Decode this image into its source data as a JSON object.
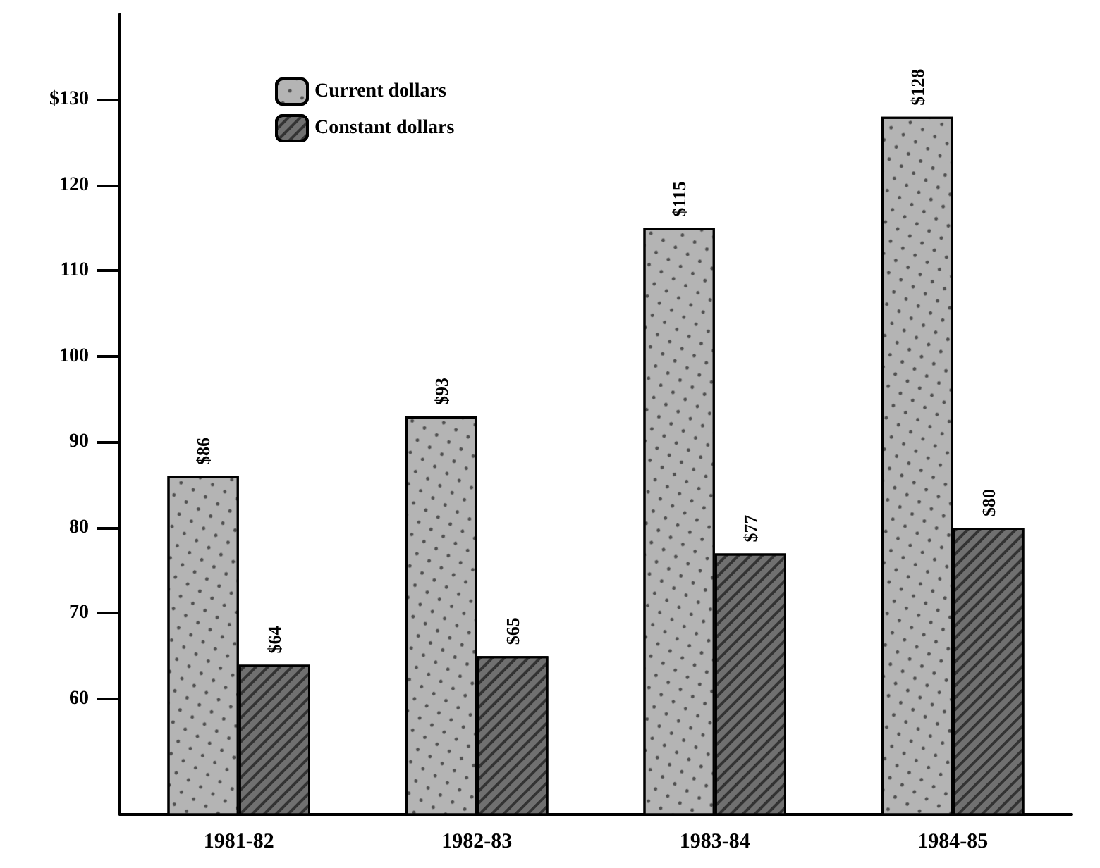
{
  "chart_data": {
    "type": "bar",
    "categories": [
      "1981-82",
      "1982-83",
      "1983-84",
      "1984-85"
    ],
    "series": [
      {
        "name": "Current dollars",
        "color": "#b4b4b4",
        "values": [
          86,
          93,
          115,
          128
        ],
        "value_labels": [
          "$86",
          "$93",
          "$115",
          "$128"
        ]
      },
      {
        "name": "Constant dollars",
        "color": "#707070",
        "values": [
          64,
          65,
          77,
          80
        ],
        "value_labels": [
          "$64",
          "$65",
          "$77",
          "$80"
        ]
      }
    ],
    "ylim": [
      46.5,
      140
    ],
    "yticks": [
      60,
      70,
      80,
      90,
      100,
      110,
      120,
      {
        "value": 130,
        "label": "$130"
      }
    ],
    "grid": false,
    "legend": "top left"
  }
}
